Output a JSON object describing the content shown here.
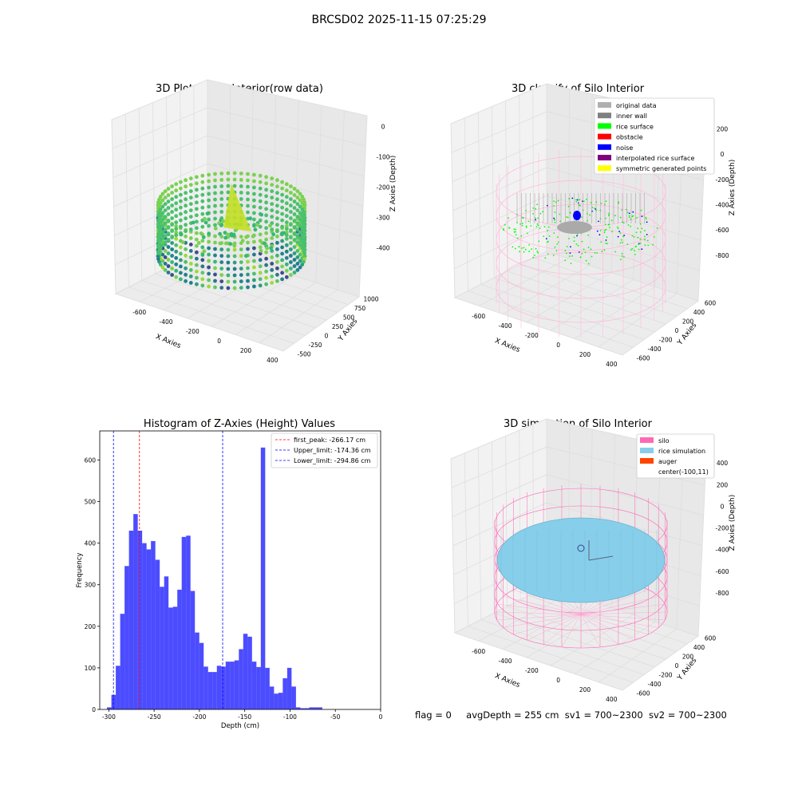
{
  "suptitle": "BRCSD02 2025-11-15 07:25:29",
  "panel1": {
    "title": "3D Plot of Silo Interior(row data)",
    "xlabel": "X Axies",
    "ylabel": "Y Axies",
    "zlabel": "Z Axies (Depth)",
    "xticks": [
      "-600",
      "-400",
      "-200",
      "0",
      "200",
      "400"
    ],
    "yticks": [
      "-500",
      "-250",
      "0",
      "250",
      "500",
      "750",
      "1000"
    ],
    "zticks": [
      "0",
      "-100",
      "-200",
      "-300",
      "-400"
    ]
  },
  "panel2": {
    "title": "3D classify of Silo Interior",
    "xlabel": "X Axies",
    "ylabel": "Y Axies",
    "zlabel": "Z Axies (Depth)",
    "xticks": [
      "-600",
      "-400",
      "-200",
      "0",
      "200",
      "400"
    ],
    "yticks": [
      "-600",
      "-400",
      "-200",
      "0",
      "200",
      "400",
      "600"
    ],
    "zticks": [
      "200",
      "0",
      "-200",
      "-400",
      "-600",
      "-800"
    ],
    "legend": [
      {
        "label": "original data",
        "color": "#b0b0b0"
      },
      {
        "label": "inner wall",
        "color": "#808080"
      },
      {
        "label": "rice surface",
        "color": "#00ff00"
      },
      {
        "label": "obstacle",
        "color": "#ff0000"
      },
      {
        "label": "noise",
        "color": "#0000ff"
      },
      {
        "label": "interpolated rice surface",
        "color": "#800080"
      },
      {
        "label": "symmetric generated points",
        "color": "#ffff00"
      }
    ]
  },
  "panel4": {
    "title": "3D simulation of Silo Interior",
    "xlabel": "X Axies",
    "ylabel": "Y Axies",
    "zlabel": "Z Axies (Depth)",
    "xticks": [
      "-600",
      "-400",
      "-200",
      "0",
      "200",
      "400"
    ],
    "yticks": [
      "-600",
      "-400",
      "-200",
      "0",
      "200",
      "400",
      "600"
    ],
    "zticks": [
      "400",
      "200",
      "0",
      "-200",
      "-400",
      "-600",
      "-800"
    ],
    "legend": [
      {
        "label": "silo",
        "color": "#ff69b4"
      },
      {
        "label": "rice simulation",
        "color": "#87ceeb"
      },
      {
        "label": "auger",
        "color": "#ff4500"
      },
      {
        "label": "center(-100,11)",
        "color": ""
      }
    ]
  },
  "chart_data": {
    "type": "bar",
    "title": "Histogram of Z-Axies (Height) Values",
    "xlabel": "Depth (cm)",
    "ylabel": "Frequency",
    "xlim": [
      -310,
      0
    ],
    "ylim": [
      0,
      670
    ],
    "xticks": [
      -300,
      -250,
      -200,
      -150,
      -100,
      -50,
      0
    ],
    "yticks": [
      0,
      100,
      200,
      300,
      400,
      500,
      600
    ],
    "bin_start": -302,
    "bin_width": 4.85,
    "values": [
      5,
      35,
      105,
      230,
      345,
      430,
      470,
      430,
      400,
      385,
      405,
      360,
      295,
      320,
      245,
      247,
      288,
      415,
      418,
      285,
      185,
      160,
      103,
      90,
      90,
      105,
      103,
      115,
      115,
      118,
      145,
      182,
      175,
      115,
      102,
      630,
      100,
      55,
      38,
      40,
      75,
      100,
      55,
      5,
      3,
      3,
      5,
      5,
      5
    ],
    "bar_color": "#0000ff",
    "vlines": [
      {
        "label": "first_peak: -266.17 cm",
        "x": -266.17,
        "color": "#ff0000"
      },
      {
        "label": "Upper_limit: -174.36 cm",
        "x": -174.36,
        "color": "#0000ff"
      },
      {
        "label": "Lower_limit: -294.86 cm",
        "x": -294.86,
        "color": "#0000ff"
      }
    ]
  },
  "footer": {
    "flag": "flag = 0",
    "avg": "avgDepth = 255 cm",
    "sv1": "sv1 = 700~2300",
    "sv2": "sv2 = 700~2300"
  }
}
